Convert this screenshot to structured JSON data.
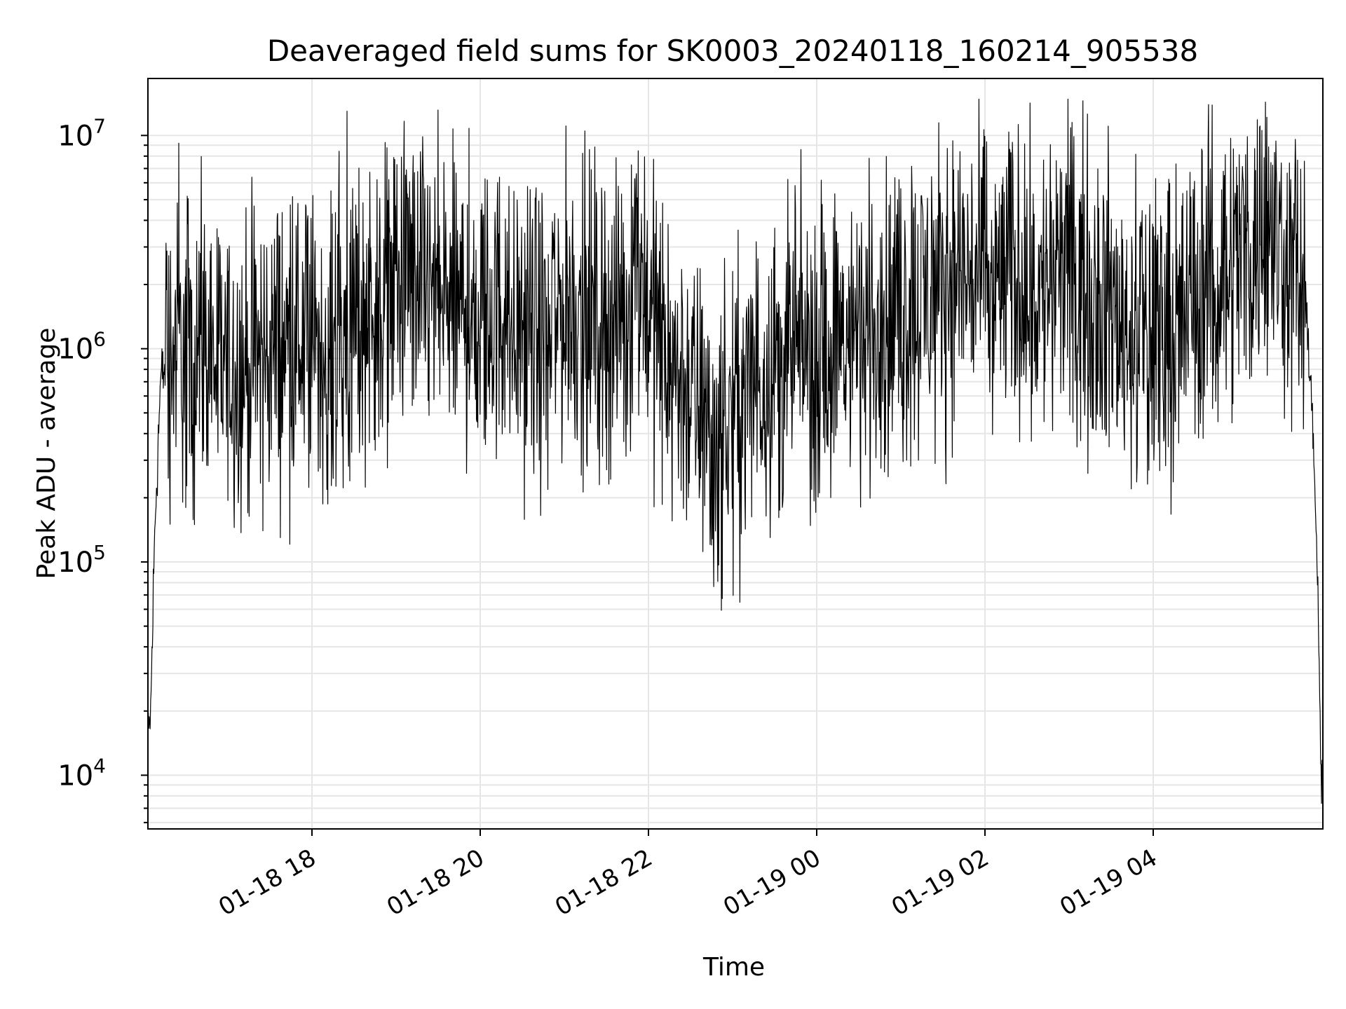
{
  "chart_data": {
    "type": "line",
    "title": "Deaveraged field sums for SK0003_20240118_160214_905538",
    "xlabel": "Time",
    "ylabel": "Peak ADU - average",
    "yscale": "log",
    "ylim": [
      5600,
      18500000
    ],
    "xlim": [
      "2024-01-18 16:03",
      "2024-01-19 06:01"
    ],
    "grid": true,
    "line_color": "#000000",
    "grid_color": "#e6e6e6",
    "x_ticks": [
      {
        "label": "01-18 18",
        "value": "2024-01-18 18:00"
      },
      {
        "label": "01-18 20",
        "value": "2024-01-18 20:00"
      },
      {
        "label": "01-18 22",
        "value": "2024-01-18 22:00"
      },
      {
        "label": "01-19 00",
        "value": "2024-01-19 00:00"
      },
      {
        "label": "01-19 02",
        "value": "2024-01-19 02:00"
      },
      {
        "label": "01-19 04",
        "value": "2024-01-19 04:00"
      }
    ],
    "y_ticks": [
      {
        "base": "10",
        "exp": "4",
        "value": 10000
      },
      {
        "base": "10",
        "exp": "5",
        "value": 100000
      },
      {
        "base": "10",
        "exp": "6",
        "value": 1000000
      },
      {
        "base": "10",
        "exp": "7",
        "value": 10000000
      }
    ],
    "series": [
      {
        "x": [
          "2024-01-18 16:03",
          "2024-01-18 16:05",
          "2024-01-18 16:08",
          "2024-01-18 16:12",
          "2024-01-18 16:20",
          "2024-01-18 16:35",
          "2024-01-18 16:50",
          "2024-01-18 17:10",
          "2024-01-18 17:30",
          "2024-01-18 17:50",
          "2024-01-18 18:10",
          "2024-01-18 18:25",
          "2024-01-18 18:40",
          "2024-01-18 19:00",
          "2024-01-18 19:15",
          "2024-01-18 19:30",
          "2024-01-18 19:45",
          "2024-01-18 19:50",
          "2024-01-18 20:00",
          "2024-01-18 20:15",
          "2024-01-18 20:30",
          "2024-01-18 20:45",
          "2024-01-18 21:00",
          "2024-01-18 21:15",
          "2024-01-18 21:30",
          "2024-01-18 21:45",
          "2024-01-18 21:55",
          "2024-01-18 22:10",
          "2024-01-18 22:25",
          "2024-01-18 22:40",
          "2024-01-18 22:50",
          "2024-01-18 23:05",
          "2024-01-18 23:20",
          "2024-01-18 23:40",
          "2024-01-19 00:00",
          "2024-01-19 00:20",
          "2024-01-19 00:40",
          "2024-01-19 01:00",
          "2024-01-19 01:20",
          "2024-01-19 01:40",
          "2024-01-19 02:00",
          "2024-01-19 02:20",
          "2024-01-19 02:40",
          "2024-01-19 03:00",
          "2024-01-19 03:20",
          "2024-01-19 03:40",
          "2024-01-19 04:00",
          "2024-01-19 04:20",
          "2024-01-19 04:40",
          "2024-01-19 05:00",
          "2024-01-19 05:20",
          "2024-01-19 05:35",
          "2024-01-19 05:45",
          "2024-01-19 05:50",
          "2024-01-19 05:55",
          "2024-01-19 05:58",
          "2024-01-19 06:00"
        ],
        "y": [
          13000,
          20000,
          150000,
          700000,
          1000000,
          950000,
          900000,
          800000,
          1000000,
          1100000,
          1000000,
          1200000,
          1600000,
          2100000,
          2000000,
          1700000,
          1500000,
          1600000,
          1300000,
          1500000,
          1200000,
          1100000,
          1600000,
          1500000,
          1300000,
          1500000,
          2200000,
          1000000,
          700000,
          450000,
          350000,
          550000,
          800000,
          900000,
          1000000,
          1100000,
          1200000,
          1400000,
          1800000,
          2300000,
          2000000,
          2200000,
          1800000,
          2400000,
          1700000,
          1300000,
          1200000,
          1400000,
          2100000,
          2800000,
          3300000,
          2800000,
          2100000,
          1400000,
          300000,
          40000,
          9000
        ],
        "spikes": [
          {
            "x": "2024-01-18 16:25",
            "y": 9200000
          },
          {
            "x": "2024-01-18 16:30",
            "y": 180000
          },
          {
            "x": "2024-01-18 17:25",
            "y": 140000
          },
          {
            "x": "2024-01-18 18:25",
            "y": 13000000
          },
          {
            "x": "2024-01-18 18:27",
            "y": 240000
          },
          {
            "x": "2024-01-18 19:52",
            "y": 10800000
          },
          {
            "x": "2024-01-18 22:45",
            "y": 120000
          },
          {
            "x": "2024-01-19 04:50",
            "y": 6800000
          }
        ]
      }
    ]
  }
}
